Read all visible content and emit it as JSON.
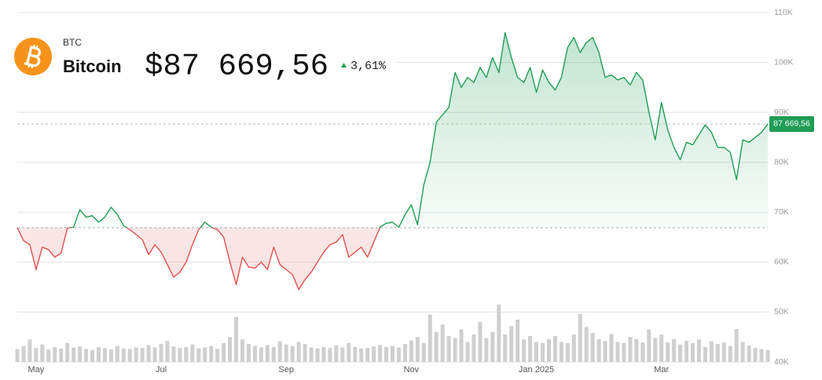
{
  "header": {
    "symbol": "BTC",
    "name": "Bitcoin",
    "price": "$87 669,56",
    "change": "3,61%"
  },
  "chart_data": {
    "type": "line",
    "categories": [
      null,
      null,
      null,
      "May",
      null,
      null,
      null,
      null,
      null,
      null,
      null,
      null,
      null,
      null,
      null,
      null,
      null,
      null,
      null,
      null,
      null,
      null,
      null,
      "Jul",
      null,
      null,
      null,
      null,
      null,
      null,
      null,
      null,
      null,
      null,
      null,
      null,
      null,
      null,
      null,
      null,
      null,
      null,
      null,
      "Sep",
      null,
      null,
      null,
      null,
      null,
      null,
      null,
      null,
      null,
      null,
      null,
      null,
      null,
      null,
      null,
      null,
      null,
      null,
      null,
      "Nov",
      null,
      null,
      null,
      null,
      null,
      null,
      null,
      null,
      null,
      null,
      null,
      null,
      null,
      null,
      null,
      null,
      null,
      null,
      null,
      "Jan 2025",
      null,
      null,
      null,
      null,
      null,
      null,
      null,
      null,
      null,
      null,
      null,
      null,
      null,
      null,
      null,
      null,
      null,
      null,
      null,
      "Mar",
      null,
      null,
      null,
      null,
      null,
      null,
      null,
      null,
      null,
      null,
      null,
      null,
      null,
      null,
      null,
      null,
      null
    ],
    "values": [
      66900,
      64300,
      63500,
      58500,
      63000,
      62500,
      61000,
      61800,
      66800,
      67000,
      70500,
      69000,
      69300,
      68000,
      69000,
      71000,
      69500,
      67300,
      66500,
      65500,
      64500,
      61500,
      63500,
      62000,
      59500,
      57000,
      58000,
      60000,
      63500,
      66500,
      68000,
      67000,
      66500,
      65000,
      60000,
      55500,
      61000,
      59000,
      58800,
      60000,
      58500,
      63000,
      59500,
      58500,
      57500,
      54500,
      56500,
      58000,
      60000,
      62000,
      63500,
      64000,
      65500,
      61000,
      62000,
      63000,
      61000,
      64000,
      67000,
      67800,
      68000,
      67000,
      69500,
      71500,
      67500,
      75500,
      80000,
      88000,
      89500,
      91000,
      98000,
      95000,
      97000,
      96000,
      99000,
      97000,
      101000,
      98000,
      106000,
      101000,
      97000,
      96000,
      99000,
      94000,
      98500,
      96000,
      94500,
      97000,
      103000,
      105000,
      102000,
      104000,
      105000,
      102000,
      97000,
      97500,
      96500,
      97000,
      95500,
      98000,
      96500,
      90000,
      84500,
      92000,
      86500,
      83000,
      80500,
      84000,
      83500,
      85500,
      87500,
      86000,
      83000,
      83000,
      82000,
      76500,
      84500,
      84000,
      85000,
      86000,
      87669.56
    ],
    "value_labels": [
      null,
      null,
      null,
      null,
      null,
      null,
      null,
      null,
      null,
      null,
      null,
      null,
      null,
      null,
      null,
      null,
      null,
      null,
      null,
      null,
      null,
      null,
      null,
      null,
      null,
      null,
      null,
      null,
      null,
      null,
      null,
      null,
      null,
      null,
      null,
      null,
      null,
      null,
      null,
      null,
      null,
      null,
      null,
      null,
      null,
      null,
      null,
      null,
      null,
      null,
      null,
      null,
      null,
      null,
      null,
      null,
      null,
      null,
      null,
      null,
      null,
      null,
      null,
      null,
      null,
      null,
      null,
      null,
      null,
      null,
      null,
      null,
      null,
      null,
      null,
      null,
      null,
      null,
      null,
      null,
      null,
      null,
      null,
      null,
      null,
      null,
      null,
      null,
      null,
      null,
      null,
      null,
      null,
      null,
      null,
      null,
      null,
      null,
      null,
      null,
      null,
      null,
      null,
      null,
      null,
      null,
      null,
      null,
      null,
      null,
      null,
      null,
      null,
      null,
      null,
      null,
      null,
      null,
      null,
      null,
      "87 669,56"
    ],
    "volume": [
      42600,
      43200,
      44500,
      42800,
      43500,
      42500,
      43000,
      42700,
      43800,
      42900,
      43100,
      42600,
      42400,
      43000,
      42800,
      42500,
      43200,
      42700,
      42600,
      42900,
      42800,
      43400,
      42900,
      43600,
      44200,
      43100,
      42800,
      43000,
      43500,
      42700,
      42900,
      43200,
      42600,
      43800,
      45000,
      49000,
      44500,
      43600,
      43200,
      42900,
      43400,
      43000,
      44100,
      43500,
      43200,
      44000,
      43600,
      42900,
      42700,
      43000,
      42800,
      43300,
      42900,
      43800,
      43000,
      42700,
      42800,
      43100,
      43400,
      43000,
      43200,
      42900,
      43600,
      44300,
      45000,
      43800,
      49500,
      46000,
      47500,
      45200,
      44800,
      46500,
      44000,
      45500,
      48000,
      44800,
      46000,
      51500,
      45500,
      47200,
      48500,
      44500,
      45200,
      44000,
      43800,
      44600,
      45200,
      44000,
      43800,
      45500,
      49600,
      47000,
      45800,
      44600,
      44200,
      45600,
      44000,
      43800,
      45000,
      44600,
      43900,
      46500,
      44800,
      45500,
      43900,
      44600,
      43500,
      44200,
      43800,
      44500,
      43000,
      44100,
      43600,
      43900,
      43200,
      46600,
      44000,
      43300,
      42800,
      42600,
      42400
    ],
    "baseline": 66900,
    "up_color": "#1f9d55",
    "down_color": "#e05050",
    "volume_color": "#cfcfcf",
    "ylim": [
      40000,
      110000
    ],
    "yticks": [
      {
        "value": 40000,
        "label": "40K"
      },
      {
        "value": 50000,
        "label": "50K"
      },
      {
        "value": 60000,
        "label": "60K"
      },
      {
        "value": 70000,
        "label": "70K"
      },
      {
        "value": 80000,
        "label": "80K"
      },
      {
        "value": 90000,
        "label": "90K"
      },
      {
        "value": 100000,
        "label": "100K"
      },
      {
        "value": 110000,
        "label": "110K"
      }
    ],
    "grid": true
  }
}
